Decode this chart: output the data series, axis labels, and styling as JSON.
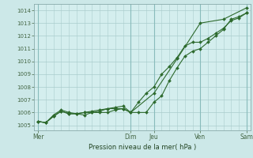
{
  "bg_color": "#cce8e8",
  "plot_bg_color": "#d4eeee",
  "grid_color": "#aacccc",
  "line_color": "#2d6a2d",
  "marker_color": "#2d6a2d",
  "title": "Pression niveau de la mer( hPa )",
  "ylabel_values": [
    1005,
    1006,
    1007,
    1008,
    1009,
    1010,
    1011,
    1012,
    1013,
    1014
  ],
  "ylim": [
    1004.6,
    1014.5
  ],
  "day_labels": [
    "Mer",
    "Dim",
    "Jeu",
    "Ven",
    "Sam"
  ],
  "day_positions": [
    0,
    12,
    15,
    21,
    27
  ],
  "xlim": [
    -0.5,
    27.5
  ],
  "series1_x": [
    0,
    1,
    2,
    3,
    4,
    5,
    6,
    7,
    8,
    9,
    10,
    11,
    12,
    15,
    18,
    21,
    24,
    27
  ],
  "series1_y": [
    1005.3,
    1005.2,
    1005.8,
    1006.2,
    1006.0,
    1005.9,
    1006.0,
    1006.1,
    1006.2,
    1006.3,
    1006.4,
    1006.5,
    1006.0,
    1007.5,
    1010.2,
    1013.0,
    1013.3,
    1014.2
  ],
  "series2_x": [
    0,
    1,
    2,
    3,
    4,
    5,
    6,
    7,
    8,
    9,
    10,
    11,
    12,
    13,
    14,
    15,
    16,
    17,
    18,
    19,
    20,
    21,
    22,
    23,
    24,
    25,
    26,
    27
  ],
  "series2_y": [
    1005.3,
    1005.2,
    1005.7,
    1006.1,
    1005.9,
    1005.9,
    1006.0,
    1006.0,
    1006.1,
    1006.3,
    1006.3,
    1006.3,
    1006.0,
    1006.8,
    1007.5,
    1008.0,
    1009.0,
    1009.6,
    1010.3,
    1011.2,
    1011.5,
    1011.5,
    1011.8,
    1012.2,
    1012.6,
    1013.2,
    1013.4,
    1013.8
  ],
  "series3_x": [
    0,
    1,
    2,
    3,
    4,
    5,
    6,
    7,
    8,
    9,
    10,
    11,
    12,
    13,
    14,
    15,
    16,
    17,
    18,
    19,
    20,
    21,
    22,
    23,
    24,
    25,
    26,
    27
  ],
  "series3_y": [
    1005.3,
    1005.2,
    1005.7,
    1006.1,
    1005.9,
    1005.9,
    1005.8,
    1006.0,
    1006.0,
    1006.0,
    1006.2,
    1006.3,
    1006.0,
    1006.0,
    1006.0,
    1006.8,
    1007.3,
    1008.5,
    1009.5,
    1010.4,
    1010.8,
    1011.0,
    1011.5,
    1012.0,
    1012.5,
    1013.3,
    1013.5,
    1013.8
  ]
}
